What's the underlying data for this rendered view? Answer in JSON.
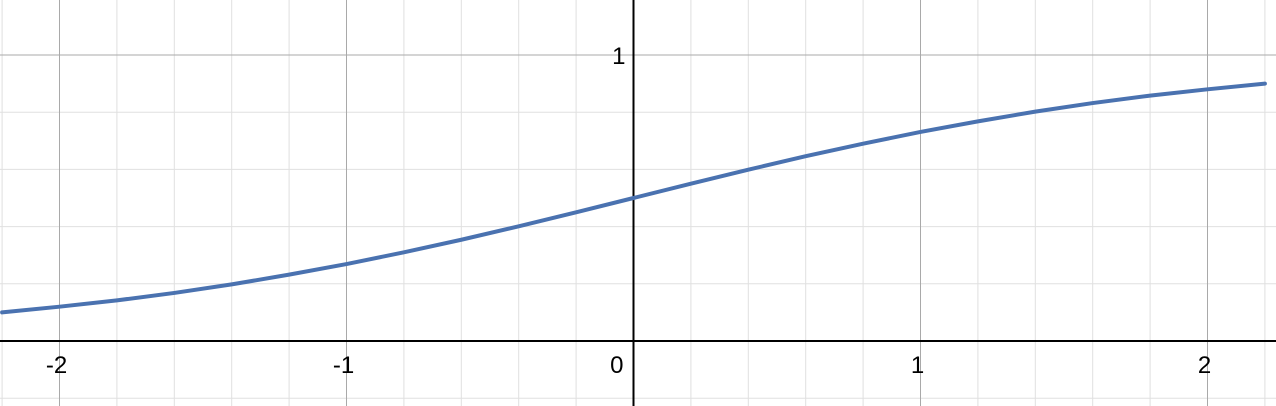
{
  "chart_data": {
    "type": "line",
    "title": "",
    "xlabel": "",
    "ylabel": "",
    "xlim": [
      -2.2,
      2.2
    ],
    "ylim": [
      -0.22,
      1.18
    ],
    "grid": true,
    "minor_grid_step": 0.2,
    "major_grid_step": 1,
    "x_ticks": [
      {
        "value": -2,
        "label": "-2"
      },
      {
        "value": -1,
        "label": "-1"
      },
      {
        "value": 0,
        "label": "0"
      },
      {
        "value": 1,
        "label": "1"
      },
      {
        "value": 2,
        "label": "2"
      }
    ],
    "y_ticks": [
      {
        "value": 1,
        "label": "1"
      }
    ],
    "series": [
      {
        "color": "#4a72b0",
        "x": [
          -2.2,
          -2.0,
          -1.8,
          -1.6,
          -1.4,
          -1.2,
          -1.0,
          -0.8,
          -0.6,
          -0.4,
          -0.2,
          0.0,
          0.2,
          0.4,
          0.6,
          0.8,
          1.0,
          1.2,
          1.4,
          1.6,
          1.8,
          2.0,
          2.2
        ],
        "y": [
          0.1,
          0.12,
          0.142,
          0.168,
          0.198,
          0.232,
          0.269,
          0.31,
          0.354,
          0.401,
          0.45,
          0.5,
          0.55,
          0.599,
          0.646,
          0.69,
          0.731,
          0.768,
          0.802,
          0.832,
          0.858,
          0.88,
          0.9
        ]
      }
    ]
  },
  "colors": {
    "background": "#ffffff",
    "minor_grid": "#e0e0e0",
    "major_grid": "#a9a9a9",
    "axis": "#000000",
    "curve": "#4a72b0"
  }
}
